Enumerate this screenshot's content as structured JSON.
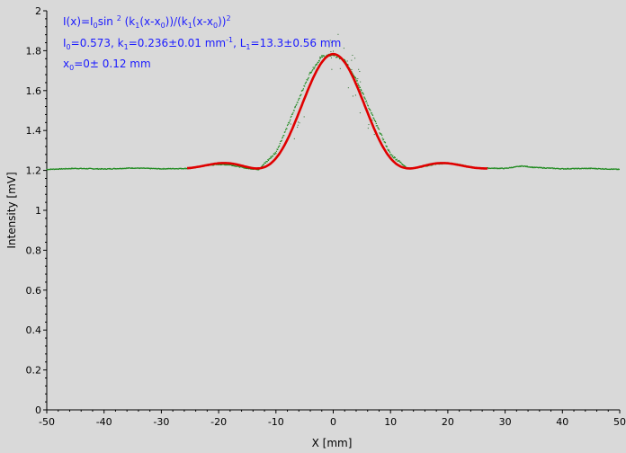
{
  "chart_data": {
    "type": "line",
    "xlabel": "X [mm]",
    "ylabel": "Intensity [mV]",
    "xlim": [
      -50,
      50
    ],
    "ylim": [
      0,
      2
    ],
    "x_ticks": [
      "-50",
      "-40",
      "-30",
      "-20",
      "-10",
      "0",
      "10",
      "20",
      "30",
      "40",
      "50"
    ],
    "y_ticks": [
      "0",
      "0.2",
      "0.4",
      "0.6",
      "0.8",
      "1",
      "1.2",
      "1.4",
      "1.6",
      "1.8",
      "2"
    ],
    "grid": false,
    "legend": "none",
    "fit": {
      "I0": 0.573,
      "k1": 0.236,
      "x0": 0,
      "baseline": 1.21,
      "range": [
        -25.5,
        27
      ]
    },
    "annotations": {
      "line1": "I(x)=I0sin 2 (k1(x-x0))/(k1(x-x0))2",
      "line2": "I0=0.573, k1=0.236±0.01 mm-1, L1=13.3±0.56 mm",
      "line3": "x0=0± 0.12 mm"
    },
    "series": [
      {
        "name": "",
        "style": "green measured points",
        "x": [
          -50,
          -45,
          -40,
          -35,
          -30,
          -25,
          -22,
          -20,
          -18,
          -15,
          -13,
          -10,
          -8,
          -6,
          -4,
          -2,
          0,
          2,
          4,
          6,
          8,
          10,
          13,
          15,
          18,
          20,
          22,
          25,
          30,
          33,
          35,
          40,
          45,
          50
        ],
        "y": [
          1.205,
          1.21,
          1.207,
          1.212,
          1.208,
          1.21,
          1.225,
          1.23,
          1.228,
          1.21,
          1.205,
          1.29,
          1.42,
          1.56,
          1.69,
          1.77,
          1.78,
          1.75,
          1.66,
          1.53,
          1.4,
          1.28,
          1.21,
          1.215,
          1.232,
          1.235,
          1.23,
          1.212,
          1.21,
          1.222,
          1.215,
          1.208,
          1.21,
          1.205
        ]
      },
      {
        "name": "",
        "style": "red fitted curve",
        "x": [
          -25.5,
          -20,
          -13.3,
          -10,
          -5,
          0,
          5,
          10,
          13.3,
          20,
          27
        ],
        "y": [
          1.208,
          1.238,
          1.21,
          1.283,
          1.55,
          1.783,
          1.55,
          1.283,
          1.21,
          1.238,
          1.208
        ]
      }
    ],
    "colors": {
      "measured": "#1f8a1f",
      "fit": "#e00000",
      "annotation": "#1a1aff",
      "background": "#d9d9d9"
    }
  }
}
